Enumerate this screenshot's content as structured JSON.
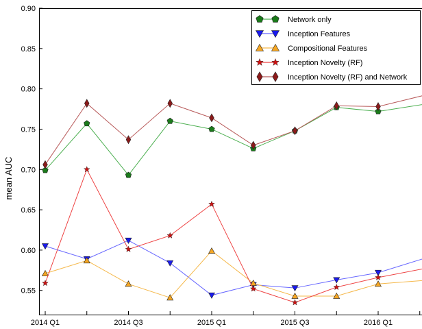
{
  "chart_data": {
    "type": "line",
    "ylabel": "mean AUC",
    "xlabel": "",
    "title": "",
    "ylim": [
      0.52,
      0.9
    ],
    "yticks": [
      "0.55",
      "0.60",
      "0.65",
      "0.70",
      "0.75",
      "0.80",
      "0.85",
      "0.90"
    ],
    "ytick_values": [
      0.55,
      0.6,
      0.65,
      0.7,
      0.75,
      0.8,
      0.85,
      0.9
    ],
    "x_tick_labels": [
      {
        "index": 0,
        "label": "2014 Q1"
      },
      {
        "index": 2,
        "label": "2014 Q3"
      },
      {
        "index": 4,
        "label": "2015 Q1"
      },
      {
        "index": 6,
        "label": "2015 Q3"
      },
      {
        "index": 8,
        "label": "2016 Q1"
      }
    ],
    "x_range": [
      0,
      9.5
    ],
    "grid": false,
    "legend_position": "top-right",
    "series": [
      {
        "name": "Network only",
        "color": "#1a7a1a",
        "line_color": "#4caf50",
        "marker": "pentagon",
        "x": [
          0,
          1,
          2,
          3,
          4,
          5,
          6,
          7,
          8,
          9.5
        ],
        "values": [
          0.699,
          0.757,
          0.693,
          0.76,
          0.75,
          0.726,
          0.748,
          0.777,
          0.772,
          0.784
        ]
      },
      {
        "name": "Inception Features",
        "color": "#1a1aee",
        "line_color": "#6666ff",
        "marker": "triangle-down",
        "x": [
          0,
          1,
          2,
          3,
          4,
          5,
          6,
          7,
          8,
          9.5
        ],
        "values": [
          0.605,
          0.589,
          0.612,
          0.584,
          0.544,
          0.557,
          0.553,
          0.563,
          0.572,
          0.596
        ]
      },
      {
        "name": "Compositional Features",
        "color": "#f5a623",
        "line_color": "#f5b84a",
        "marker": "triangle-up",
        "x": [
          0,
          1,
          2,
          3,
          4,
          5,
          6,
          7,
          8,
          9.5
        ],
        "values": [
          0.571,
          0.587,
          0.558,
          0.541,
          0.599,
          0.559,
          0.543,
          0.543,
          0.558,
          0.564
        ]
      },
      {
        "name": "Inception Novelty (RF)",
        "color": "#cc1111",
        "line_color": "#ee4444",
        "marker": "star",
        "x": [
          0,
          1,
          2,
          3,
          4,
          5,
          6,
          7,
          8,
          9.5
        ],
        "values": [
          0.559,
          0.7,
          0.601,
          0.618,
          0.657,
          0.552,
          0.535,
          0.554,
          0.566,
          0.581
        ]
      },
      {
        "name": "Inception Novelty (RF) and Network",
        "color": "#8b1a1a",
        "line_color": "#b85a5a",
        "marker": "diamond",
        "x": [
          0,
          1,
          2,
          3,
          4,
          5,
          6,
          7,
          8,
          9.5
        ],
        "values": [
          0.706,
          0.782,
          0.737,
          0.782,
          0.764,
          0.73,
          0.748,
          0.779,
          0.778,
          0.797
        ]
      }
    ]
  }
}
